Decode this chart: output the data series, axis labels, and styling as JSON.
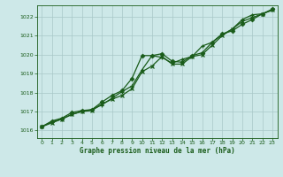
{
  "title": "Graphe pression niveau de la mer (hPa)",
  "background_color": "#cde8e8",
  "plot_bg_color": "#cde8e8",
  "grid_color": "#a8c8c8",
  "line_color": "#1a5c1a",
  "marker_color": "#1a5c1a",
  "text_color": "#1a5c1a",
  "xlim": [
    -0.5,
    23.5
  ],
  "ylim": [
    1015.6,
    1022.6
  ],
  "yticks": [
    1016,
    1017,
    1018,
    1019,
    1020,
    1021,
    1022
  ],
  "xticks": [
    0,
    1,
    2,
    3,
    4,
    5,
    6,
    7,
    8,
    9,
    10,
    11,
    12,
    13,
    14,
    15,
    16,
    17,
    18,
    19,
    20,
    21,
    22,
    23
  ],
  "series": [
    [
      1016.2,
      1016.5,
      1016.65,
      1016.95,
      1017.05,
      1017.1,
      1017.5,
      1017.85,
      1018.1,
      1018.75,
      1019.95,
      1019.95,
      1020.05,
      1019.65,
      1019.6,
      1019.95,
      1020.1,
      1020.65,
      1021.1,
      1021.25,
      1021.6,
      1021.85,
      1022.15,
      1022.4
    ],
    [
      1016.2,
      1016.45,
      1016.6,
      1016.85,
      1017.0,
      1017.1,
      1017.35,
      1017.7,
      1018.05,
      1018.35,
      1019.2,
      1019.95,
      1019.85,
      1019.55,
      1019.75,
      1019.9,
      1020.45,
      1020.65,
      1021.05,
      1021.35,
      1021.85,
      1022.1,
      1022.15,
      1022.35
    ],
    [
      1016.2,
      1016.4,
      1016.6,
      1016.85,
      1017.0,
      1017.05,
      1017.4,
      1017.65,
      1017.85,
      1018.2,
      1019.1,
      1019.4,
      1019.9,
      1019.5,
      1019.5,
      1019.9,
      1020.0,
      1020.5,
      1021.0,
      1021.35,
      1021.75,
      1021.95,
      1022.15,
      1022.35
    ]
  ]
}
